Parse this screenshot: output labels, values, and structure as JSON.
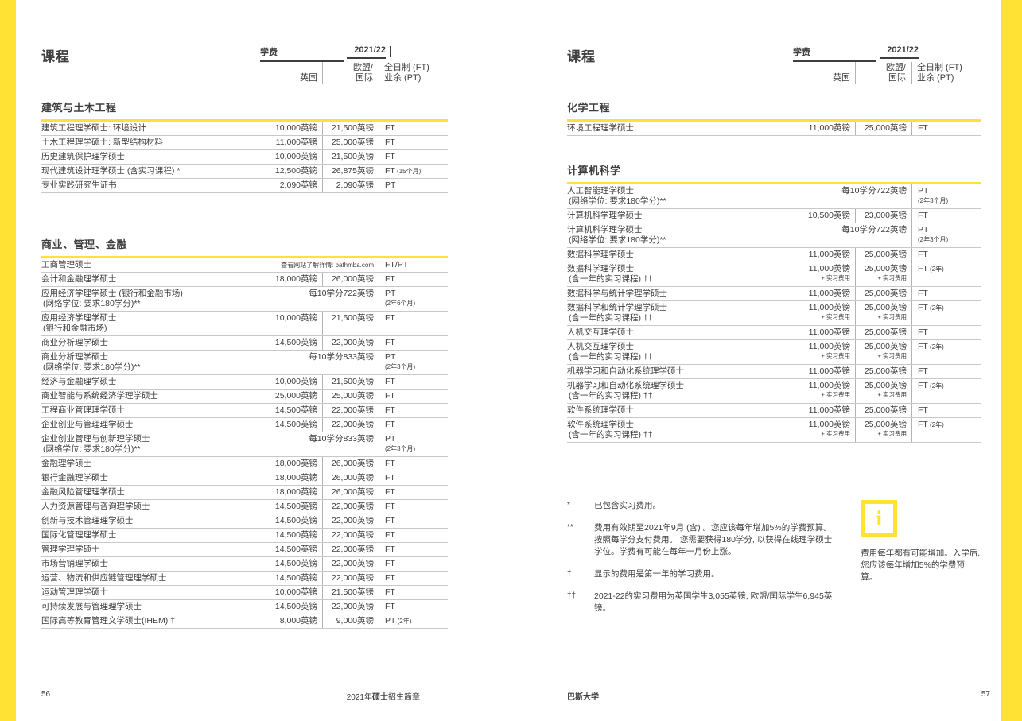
{
  "theme": {
    "yellow": "#FFE233",
    "ink": "#3E3E3E"
  },
  "pages": [
    {
      "header": {
        "title": "课程",
        "fee": "学费",
        "year": "2021/22",
        "uk": "英国",
        "eu1": "欧盟/",
        "eu2": "国际",
        "mode1": "全日制 (FT)",
        "mode2": "业余 (PT)"
      },
      "sections": [
        {
          "title": "建筑与土木工程",
          "rows": [
            {
              "n": "建筑工程理学硕士: 环境设计",
              "uk": "10,000英镑",
              "eu": "21,500英镑",
              "m": "FT"
            },
            {
              "n": "土木工程理学硕士: 新型结构材料",
              "uk": "11,000英镑",
              "eu": "25,000英镑",
              "m": "FT"
            },
            {
              "n": "历史建筑保护理学硕士",
              "uk": "10,000英镑",
              "eu": "21,500英镑",
              "m": "FT"
            },
            {
              "n": "现代建筑设计理学硕士 (含实习课程) *",
              "uk": "12,500英镑",
              "eu": "26,875英镑",
              "m": "FT",
              "mn": "(15个月)"
            },
            {
              "n": "专业实践研究生证书",
              "uk": "2,090英镑",
              "eu": "2,090英镑",
              "m": "PT"
            }
          ]
        },
        {
          "title": "商业、管理、金融",
          "rows": [
            {
              "n": "工商管理硕士",
              "span": "查看网站了解详情: bathmba.com",
              "span_small": true,
              "m": "FT/PT"
            },
            {
              "n": "会计和金融理学硕士",
              "uk": "18,000英镑",
              "eu": "26,000英镑",
              "m": "FT"
            },
            {
              "n": "应用经济学理学硕士 (银行和金融市场)",
              "n2": "(网络学位: 要求180学分)**",
              "span": "每10学分722英镑",
              "m": "PT",
              "mn2": "(2年6个月)"
            },
            {
              "n": "应用经济学理学硕士",
              "n2": "(银行和金融市场)",
              "uk": "10,000英镑",
              "eu": "21,500英镑",
              "m": "FT"
            },
            {
              "n": "商业分析理学硕士",
              "uk": "14,500英镑",
              "eu": "22,000英镑",
              "m": "FT"
            },
            {
              "n": "商业分析理学硕士",
              "n2": "(网络学位: 要求180学分)**",
              "span": "每10学分833英镑",
              "m": "PT",
              "mn2": "(2年3个月)"
            },
            {
              "n": "经济与金融理学硕士",
              "uk": "10,000英镑",
              "eu": "21,500英镑",
              "m": "FT"
            },
            {
              "n": "商业智能与系统经济学理学硕士",
              "uk": "25,000英镑",
              "eu": "25,000英镑",
              "m": "FT"
            },
            {
              "n": "工程商业管理理学硕士",
              "uk": "14,500英镑",
              "eu": "22,000英镑",
              "m": "FT"
            },
            {
              "n": "企业创业与管理理学硕士",
              "uk": "14,500英镑",
              "eu": "22,000英镑",
              "m": "FT"
            },
            {
              "n": "企业创业管理与创新理学硕士",
              "n2": "(网络学位: 要求180学分)**",
              "span": "每10学分833英镑",
              "m": "PT",
              "mn2": "(2年3个月)"
            },
            {
              "n": "金融理学硕士",
              "uk": "18,000英镑",
              "eu": "26,000英镑",
              "m": "FT"
            },
            {
              "n": "银行金融理学硕士",
              "uk": "18,000英镑",
              "eu": "26,000英镑",
              "m": "FT"
            },
            {
              "n": "金融风险管理理学硕士",
              "uk": "18,000英镑",
              "eu": "26,000英镑",
              "m": "FT"
            },
            {
              "n": "人力资源管理与咨询理学硕士",
              "uk": "14,500英镑",
              "eu": "22,000英镑",
              "m": "FT"
            },
            {
              "n": "创新与技术管理理学硕士",
              "uk": "14,500英镑",
              "eu": "22,000英镑",
              "m": "FT"
            },
            {
              "n": "国际化管理理学硕士",
              "uk": "14,500英镑",
              "eu": "22,000英镑",
              "m": "FT"
            },
            {
              "n": "管理学理学硕士",
              "uk": "14,500英镑",
              "eu": "22,000英镑",
              "m": "FT"
            },
            {
              "n": "市场营销理学硕士",
              "uk": "14,500英镑",
              "eu": "22,000英镑",
              "m": "FT"
            },
            {
              "n": "运营、物流和供应链管理理学硕士",
              "uk": "14,500英镑",
              "eu": "22,000英镑",
              "m": "FT"
            },
            {
              "n": "运动管理理学硕士",
              "uk": "10,000英镑",
              "eu": "21,500英镑",
              "m": "FT"
            },
            {
              "n": "可持续发展与管理理学硕士",
              "uk": "14,500英镑",
              "eu": "22,000英镑",
              "m": "FT"
            },
            {
              "n": "国际高等教育管理文学硕士(IHEM) †",
              "uk": "8,000英镑",
              "eu": "9,000英镑",
              "m": "PT",
              "mn": "(2年)"
            }
          ]
        }
      ],
      "footer": {
        "page_no": "56",
        "title_pre": "2021年",
        "title_bold": "硕士",
        "title_post": "招生简章"
      }
    },
    {
      "header": {
        "title": "课程",
        "fee": "学费",
        "year": "2021/22",
        "uk": "英国",
        "eu1": "欧盟/",
        "eu2": "国际",
        "mode1": "全日制 (FT)",
        "mode2": "业余 (PT)"
      },
      "sections": [
        {
          "title": "化学工程",
          "rows": [
            {
              "n": "环境工程理学硕士",
              "uk": "11,000英镑",
              "eu": "25,000英镑",
              "m": "FT"
            }
          ]
        },
        {
          "title": "计算机科学",
          "rows": [
            {
              "n": "人工智能理学硕士",
              "n2": "(网络学位: 要求180学分)**",
              "span": "每10学分722英镑",
              "m": "PT",
              "mn2": "(2年3个月)"
            },
            {
              "n": "计算机科学理学硕士",
              "uk": "10,500英镑",
              "eu": "23,000英镑",
              "m": "FT"
            },
            {
              "n": "计算机科学理学硕士",
              "n2": "(网络学位: 要求180学分)**",
              "span": "每10学分722英镑",
              "m": "PT",
              "mn2": "(2年3个月)"
            },
            {
              "n": "数据科学理学硕士",
              "uk": "11,000英镑",
              "eu": "25,000英镑",
              "m": "FT"
            },
            {
              "n": "数据科学理学硕士",
              "n2": "(含一年的实习课程) ††",
              "uk": "11,000英镑",
              "uks": "+ 实习费用",
              "eu": "25,000英镑",
              "eus": "+ 实习费用",
              "m": "FT",
              "mn": "(2年)"
            },
            {
              "n": "数据科学与统计学理学硕士",
              "uk": "11,000英镑",
              "eu": "25,000英镑",
              "m": "FT"
            },
            {
              "n": "数据科学和统计学理学硕士",
              "n2": "(含一年的实习课程) ††",
              "uk": "11,000英镑",
              "uks": "+ 实习费用",
              "eu": "25,000英镑",
              "eus": "+ 实习费用",
              "m": "FT",
              "mn": "(2年)"
            },
            {
              "n": "人机交互理学硕士",
              "uk": "11,000英镑",
              "eu": "25,000英镑",
              "m": "FT"
            },
            {
              "n": "人机交互理学硕士",
              "n2": "(含一年的实习课程) ††",
              "uk": "11,000英镑",
              "uks": "+ 实习费用",
              "eu": "25,000英镑",
              "eus": "+ 实习费用",
              "m": "FT",
              "mn": "(2年)"
            },
            {
              "n": "机器学习和自动化系统理学硕士",
              "uk": "11,000英镑",
              "eu": "25,000英镑",
              "m": "FT"
            },
            {
              "n": "机器学习和自动化系统理学硕士",
              "n2": "(含一年的实习课程) ††",
              "uk": "11,000英镑",
              "uks": "+ 实习费用",
              "eu": "25,000英镑",
              "eus": "+ 实习费用",
              "m": "FT",
              "mn": "(2年)"
            },
            {
              "n": "软件系统理学硕士",
              "uk": "11,000英镑",
              "eu": "25,000英镑",
              "m": "FT"
            },
            {
              "n": "软件系统理学硕士",
              "n2": "(含一年的实习课程) ††",
              "uk": "11,000英镑",
              "uks": "+ 实习费用",
              "eu": "25,000英镑",
              "eus": "+ 实习费用",
              "m": "FT",
              "mn": "(2年)"
            }
          ]
        }
      ],
      "footnotes": [
        {
          "mark": "*",
          "text": "已包含实习费用。"
        },
        {
          "mark": "**",
          "text": "费用有效期至2021年9月 (含) 。您应该每年增加5%的学费预算。按照每学分支付费用。 您需要获得180学分, 以获得在线理学硕士学位。学费有可能在每年一月份上涨。"
        },
        {
          "mark": "†",
          "text": "显示的费用是第一年的学习费用。"
        },
        {
          "mark": "††",
          "text": "2021-22的实习费用为英国学生3,055英镑, 欧盟/国际学生6,945英镑。"
        }
      ],
      "info": {
        "icon": "info-icon",
        "icon_glyph": "i",
        "text": "费用每年都有可能增加。入学后, 您应该每年增加5%的学费预算。"
      },
      "footer": {
        "brand": "巴斯大学",
        "page_no": "57"
      }
    }
  ]
}
